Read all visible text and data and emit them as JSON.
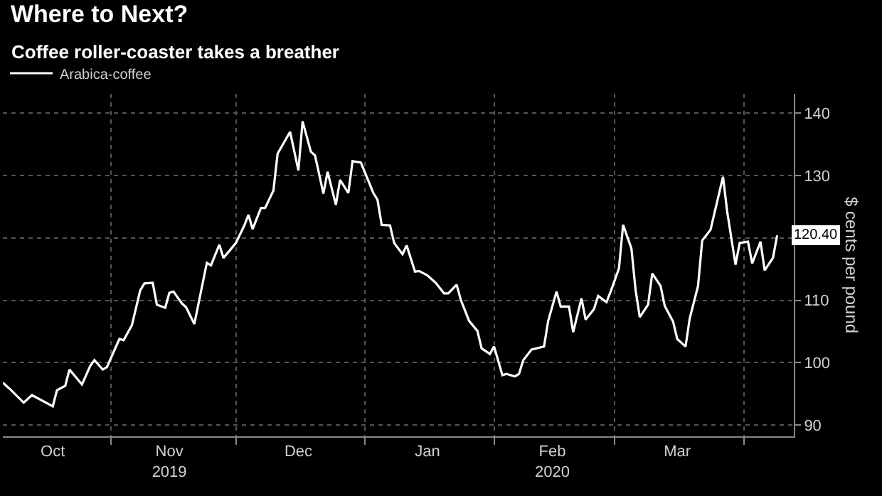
{
  "chart_data": {
    "type": "line",
    "title": "Where to Next?",
    "subtitle": "Coffee roller-coaster takes a breather",
    "ylabel": "$ cents per pound",
    "x": [
      "2019-10-06",
      "2019-10-08",
      "2019-10-11",
      "2019-10-13",
      "2019-10-18",
      "2019-10-19",
      "2019-10-21",
      "2019-10-22",
      "2019-10-25",
      "2019-10-27",
      "2019-10-28",
      "2019-10-30",
      "2019-10-31",
      "2019-11-03",
      "2019-11-04",
      "2019-11-06",
      "2019-11-08",
      "2019-11-09",
      "2019-11-11",
      "2019-11-12",
      "2019-11-14",
      "2019-11-15",
      "2019-11-16",
      "2019-11-18",
      "2019-11-19",
      "2019-11-21",
      "2019-11-24",
      "2019-11-25",
      "2019-11-27",
      "2019-11-28",
      "2019-11-30",
      "2019-12-01",
      "2019-12-03",
      "2019-12-04",
      "2019-12-05",
      "2019-12-07",
      "2019-12-08",
      "2019-12-10",
      "2019-12-11",
      "2019-12-14",
      "2019-12-16",
      "2019-12-17",
      "2019-12-19",
      "2019-12-20",
      "2019-12-22",
      "2019-12-23",
      "2019-12-25",
      "2019-12-26",
      "2019-12-28",
      "2019-12-29",
      "2019-12-31",
      "2020-01-03",
      "2020-01-04",
      "2020-01-05",
      "2020-01-07",
      "2020-01-08",
      "2020-01-10",
      "2020-01-11",
      "2020-01-13",
      "2020-01-14",
      "2020-01-16",
      "2020-01-18",
      "2020-01-20",
      "2020-01-21",
      "2020-01-23",
      "2020-01-24",
      "2020-01-26",
      "2020-01-28",
      "2020-01-29",
      "2020-01-31",
      "2020-02-01",
      "2020-02-03",
      "2020-02-04",
      "2020-02-06",
      "2020-02-07",
      "2020-02-08",
      "2020-02-10",
      "2020-02-13",
      "2020-02-14",
      "2020-02-16",
      "2020-02-17",
      "2020-02-19",
      "2020-02-20",
      "2020-02-22",
      "2020-02-23",
      "2020-02-25",
      "2020-02-26",
      "2020-02-28",
      "2020-02-29",
      "2020-03-02",
      "2020-03-03",
      "2020-03-05",
      "2020-03-06",
      "2020-03-07",
      "2020-03-09",
      "2020-03-10",
      "2020-03-12",
      "2020-03-13",
      "2020-03-15",
      "2020-03-16",
      "2020-03-18",
      "2020-03-19",
      "2020-03-21",
      "2020-03-22",
      "2020-03-24",
      "2020-03-27",
      "2020-03-28",
      "2020-03-30",
      "2020-03-31",
      "2020-04-02",
      "2020-04-03",
      "2020-04-05",
      "2020-04-06",
      "2020-04-08",
      "2020-04-09"
    ],
    "series": [
      {
        "name": "Arabica-coffee",
        "color": "#ffffff",
        "values": [
          96.8,
          95.6,
          93.6,
          94.8,
          93.0,
          95.6,
          96.3,
          98.9,
          96.5,
          99.5,
          100.4,
          98.9,
          99.3,
          103.8,
          103.6,
          106.0,
          111.6,
          112.7,
          112.8,
          109.3,
          108.8,
          111.2,
          111.4,
          109.5,
          108.9,
          106.2,
          116.0,
          115.6,
          118.9,
          116.8,
          118.4,
          119.2,
          122.0,
          123.7,
          121.4,
          124.8,
          124.8,
          127.6,
          133.5,
          137.0,
          130.8,
          138.7,
          133.8,
          133.2,
          127.1,
          130.6,
          125.3,
          129.3,
          127.2,
          132.3,
          132.1,
          127.2,
          126.1,
          122.1,
          122.0,
          119.2,
          117.4,
          118.8,
          114.6,
          114.7,
          114.0,
          112.8,
          111.1,
          111.1,
          112.5,
          110.1,
          106.7,
          105.1,
          102.3,
          101.4,
          102.6,
          98.0,
          98.2,
          97.8,
          98.2,
          100.4,
          102.1,
          102.6,
          106.7,
          111.4,
          109.0,
          109.0,
          104.9,
          110.3,
          106.9,
          108.6,
          110.7,
          109.7,
          111.4,
          115.1,
          122.1,
          118.3,
          111.6,
          107.3,
          109.3,
          114.3,
          112.3,
          109.1,
          106.6,
          103.8,
          102.6,
          107.1,
          112.3,
          119.6,
          121.3,
          129.8,
          124.2,
          115.7,
          119.2,
          119.4,
          115.9,
          119.4,
          114.8,
          116.8,
          120.4
        ]
      }
    ],
    "xlim": [
      "2019-10-06",
      "2020-04-13"
    ],
    "xticks": [
      {
        "value": "2019-10-18",
        "label": "Oct"
      },
      {
        "value": "2019-11-15",
        "label": "Nov\n2019"
      },
      {
        "value": "2019-12-16",
        "label": "Dec"
      },
      {
        "value": "2020-01-16",
        "label": "Jan"
      },
      {
        "value": "2020-02-15",
        "label": "Feb\n2020"
      },
      {
        "value": "2020-03-16",
        "label": "Mar"
      },
      {
        "value": "2019-11-01",
        "label": null
      },
      {
        "value": "2019-12-01",
        "label": null
      },
      {
        "value": "2020-01-01",
        "label": null
      },
      {
        "value": "2020-02-01",
        "label": null
      },
      {
        "value": "2020-03-01",
        "label": null
      },
      {
        "value": "2020-04-01",
        "label": null
      }
    ],
    "ylim": [
      88.2,
      143.1
    ],
    "yticks": [
      90,
      100,
      110,
      {
        "value": 120,
        "label": null
      },
      130,
      140
    ],
    "annotations": [
      {
        "text": "120.40",
        "x": "2020-04-09",
        "y": 120.4
      }
    ],
    "grid": true,
    "legend": "top left",
    "line_style": "solid",
    "marker": "none"
  }
}
